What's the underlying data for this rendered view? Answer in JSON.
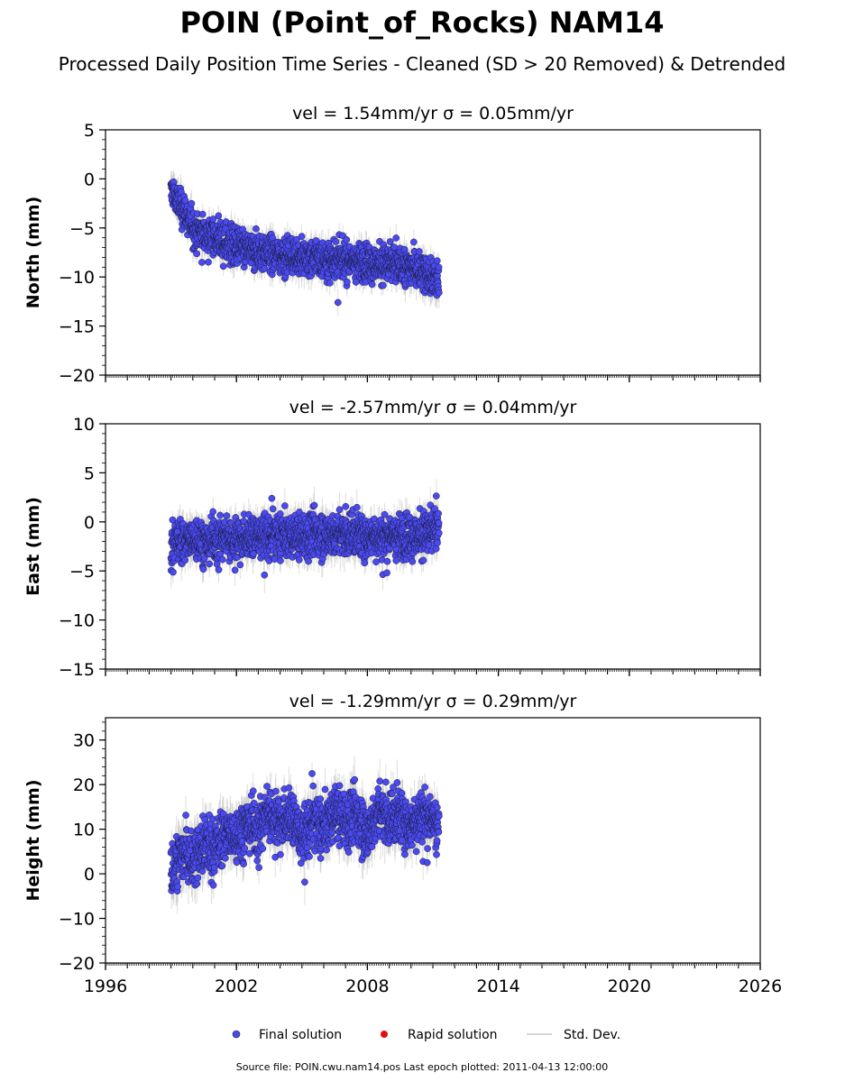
{
  "header": {
    "title": "POIN (Point_of_Rocks) NAM14",
    "subtitle": "Processed Daily Position Time Series - Cleaned (SD > 20 Removed) & Detrended"
  },
  "legend": {
    "final": "Final solution",
    "rapid": "Rapid solution",
    "std": "Std. Dev."
  },
  "footer": {
    "source": "Source file: POIN.cwu.nam14.pos  Last epoch plotted: 2011-04-13 12:00:00"
  },
  "colors": {
    "final": "#4a4af0",
    "rapid": "#e01010",
    "std": "#c8c8c8"
  },
  "chart_data": [
    {
      "type": "scatter",
      "title": "vel = 1.54mm/yr   σ = 0.05mm/yr",
      "ylabel": "North (mm)",
      "xlim": [
        1996,
        2026
      ],
      "ylim": [
        -20,
        5
      ],
      "yticks": [
        5,
        0,
        -5,
        -10,
        -15,
        -20
      ],
      "series": [
        {
          "name": "Final solution",
          "x": [
            1999.0,
            1999.1,
            1999.2,
            1999.3,
            1999.5,
            1999.8,
            2000.0,
            2000.5,
            2001.0,
            2001.5,
            2002.0,
            2002.5,
            2003.0,
            2003.5,
            2004.0,
            2004.5,
            2005.0,
            2005.5,
            2006.0,
            2006.5,
            2007.0,
            2007.5,
            2008.0,
            2008.5,
            2009.0,
            2009.5,
            2010.0,
            2010.5,
            2010.8,
            2011.0,
            2011.28
          ],
          "y": [
            -1.5,
            -1.0,
            -2.0,
            -2.5,
            -3.0,
            -4.0,
            -5.0,
            -5.5,
            -6.0,
            -6.5,
            -7.0,
            -7.2,
            -7.5,
            -7.5,
            -7.7,
            -7.8,
            -8.0,
            -8.0,
            -8.2,
            -8.2,
            -8.3,
            -8.4,
            -8.5,
            -8.6,
            -8.7,
            -8.9,
            -9.0,
            -9.4,
            -9.8,
            -10.0,
            -10.5
          ]
        }
      ],
      "std_dev_band": 1.5
    },
    {
      "type": "scatter",
      "title": "vel = -2.57mm/yr   σ = 0.04mm/yr",
      "ylabel": "East (mm)",
      "xlim": [
        1996,
        2026
      ],
      "ylim": [
        -15,
        10
      ],
      "yticks": [
        10,
        5,
        0,
        -5,
        -10,
        -15
      ],
      "series": [
        {
          "name": "Final solution",
          "x": [
            1999.0,
            1999.5,
            2000.0,
            2000.5,
            2001.0,
            2001.5,
            2002.0,
            2002.5,
            2003.0,
            2003.5,
            2004.0,
            2004.5,
            2005.0,
            2005.5,
            2006.0,
            2006.5,
            2007.0,
            2007.5,
            2008.0,
            2008.5,
            2009.0,
            2009.5,
            2010.0,
            2010.5,
            2011.0,
            2011.28
          ],
          "y": [
            -2.0,
            -2.0,
            -1.8,
            -1.8,
            -1.7,
            -1.7,
            -1.6,
            -1.6,
            -1.5,
            -1.5,
            -1.4,
            -1.4,
            -1.4,
            -1.3,
            -1.3,
            -1.3,
            -1.3,
            -1.3,
            -1.4,
            -1.4,
            -1.4,
            -1.4,
            -1.4,
            -1.3,
            -1.0,
            -0.5
          ]
        }
      ],
      "std_dev_band": 1.8
    },
    {
      "type": "scatter",
      "title": "vel = -1.29mm/yr   σ = 0.29mm/yr",
      "ylabel": "Height (mm)",
      "xlim": [
        1996,
        2026
      ],
      "ylim": [
        -20,
        35
      ],
      "yticks": [
        30,
        20,
        10,
        0,
        -10,
        -20
      ],
      "series": [
        {
          "name": "Final solution",
          "x": [
            1999.0,
            1999.5,
            2000.0,
            2000.5,
            2001.0,
            2001.5,
            2002.0,
            2002.5,
            2003.0,
            2003.5,
            2004.0,
            2004.5,
            2005.0,
            2005.5,
            2006.0,
            2006.5,
            2007.0,
            2007.5,
            2008.0,
            2008.5,
            2009.0,
            2009.5,
            2010.0,
            2010.5,
            2011.0,
            2011.28
          ],
          "y": [
            0.0,
            5.0,
            3.0,
            7.0,
            6.0,
            9.0,
            8.0,
            12.0,
            10.0,
            14.0,
            12.0,
            13.0,
            8.0,
            12.0,
            10.0,
            14.0,
            12.0,
            13.0,
            9.0,
            14.0,
            12.0,
            13.0,
            11.0,
            14.0,
            12.0,
            11.0
          ]
        }
      ],
      "std_dev_band": 5.0
    }
  ],
  "x_axis": {
    "ticks": [
      1996,
      2002,
      2008,
      2014,
      2020,
      2026
    ],
    "tick_labels": [
      "1996",
      "2002",
      "2008",
      "2014",
      "2020",
      "2026"
    ]
  }
}
